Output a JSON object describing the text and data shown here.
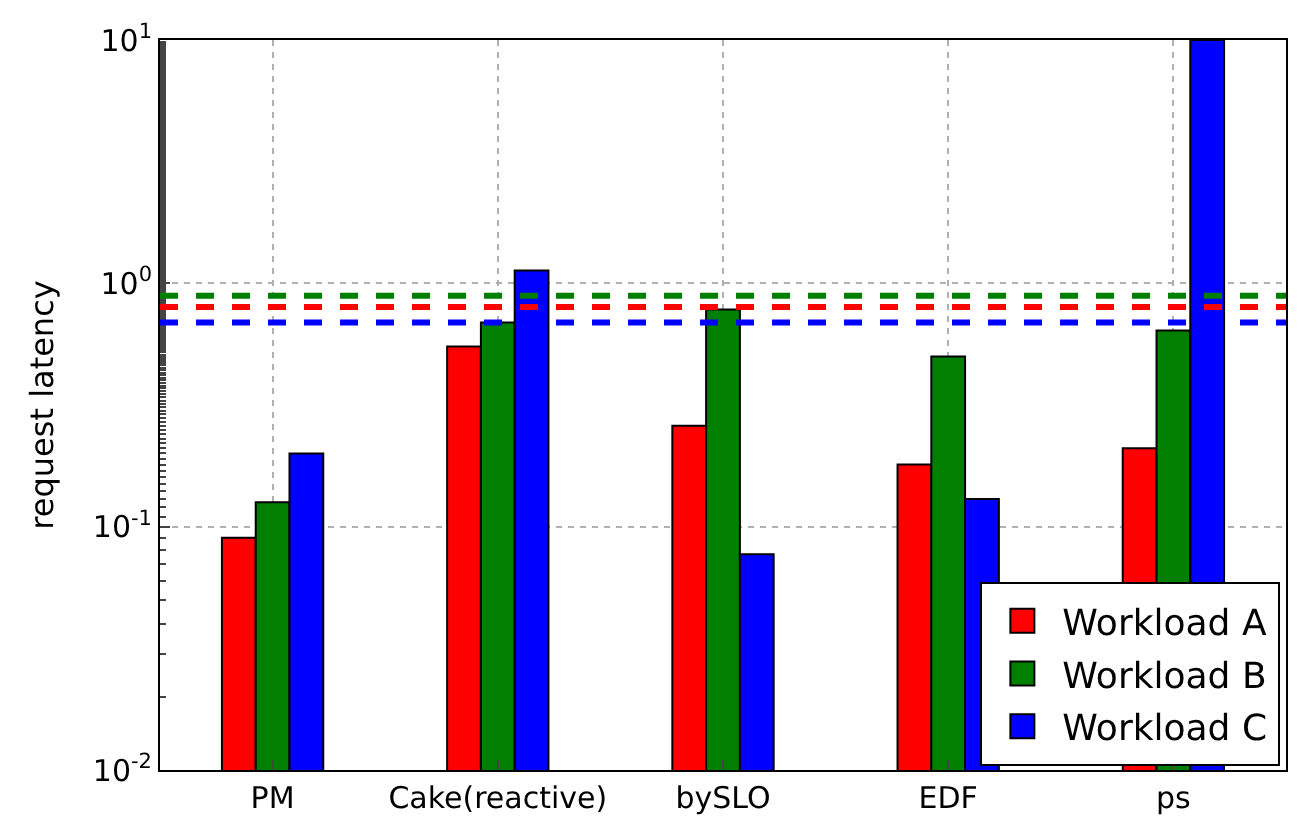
{
  "chart_data": {
    "type": "bar",
    "ylabel": "request latency",
    "categories": [
      "PM",
      "Cake(reactive)",
      "bySLO",
      "EDF",
      "ps"
    ],
    "series": [
      {
        "name": "Workload A",
        "color": "#ff0000",
        "values": [
          0.09,
          0.55,
          0.26,
          0.18,
          0.21
        ]
      },
      {
        "name": "Workload B",
        "color": "#007f00",
        "values": [
          0.126,
          0.69,
          0.78,
          0.5,
          0.64
        ]
      },
      {
        "name": "Workload C",
        "color": "#0000ff",
        "values": [
          0.2,
          1.13,
          0.077,
          0.13,
          10
        ]
      }
    ],
    "log": "y",
    "ylim": [
      0.01,
      10
    ],
    "yticks": [
      {
        "value": 0.01,
        "label": "10$^{-2}$"
      },
      {
        "value": 0.1,
        "label": "10$^{-1}$"
      },
      {
        "value": 1,
        "label": "10$^{0}$"
      },
      {
        "value": 10,
        "label": "10$^{1}$"
      }
    ],
    "ref_lines": [
      {
        "axis": "y",
        "value": 0.89,
        "color": "#007f00",
        "line_style": "dashed"
      },
      {
        "axis": "y",
        "value": 0.8,
        "color": "#ff0000",
        "line_style": "dashed"
      },
      {
        "axis": "y",
        "value": 0.69,
        "color": "#0000ff",
        "line_style": "dashed"
      }
    ],
    "grid": true,
    "legend": "bottom right"
  }
}
